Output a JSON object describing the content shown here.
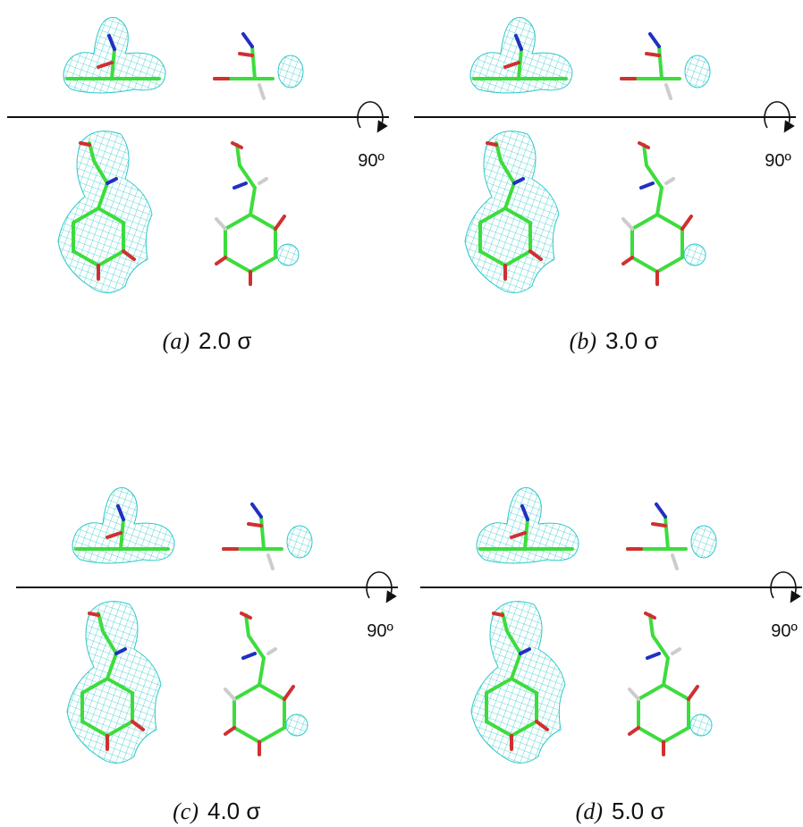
{
  "panels": [
    {
      "label": "(a)",
      "level": "2.0 σ",
      "rotation": "90º"
    },
    {
      "label": "(b)",
      "level": "3.0 σ",
      "rotation": "90º"
    },
    {
      "label": "(c)",
      "level": "4.0 σ",
      "rotation": "90º"
    },
    {
      "label": "(d)",
      "level": "5.0 σ",
      "rotation": "90º"
    }
  ]
}
